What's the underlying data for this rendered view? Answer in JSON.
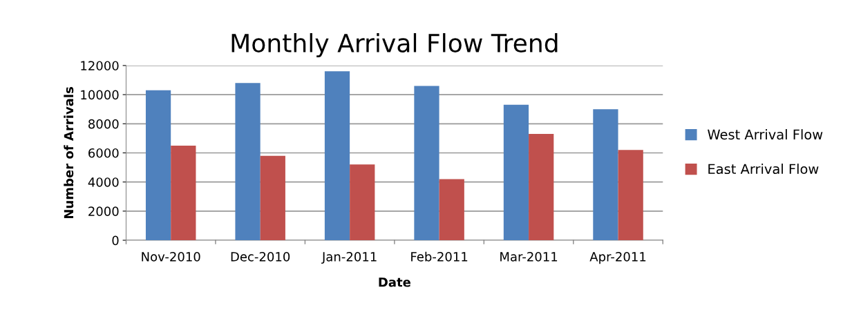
{
  "chart_data": {
    "type": "bar",
    "title": "Monthly Arrival Flow Trend",
    "xlabel": "Date",
    "ylabel": "Number of Arrivals",
    "categories": [
      "Nov-2010",
      "Dec-2010",
      "Jan-2011",
      "Feb-2011",
      "Mar-2011",
      "Apr-2011"
    ],
    "series": [
      {
        "name": "West Arrival Flow",
        "color": "#4f81bd",
        "values": [
          10300,
          10800,
          11600,
          10600,
          9300,
          9000
        ]
      },
      {
        "name": "East Arrival Flow",
        "color": "#c0504d",
        "values": [
          6500,
          5800,
          5200,
          4200,
          7300,
          6200
        ]
      }
    ],
    "ylim": [
      0,
      12000
    ],
    "yticks": [
      0,
      2000,
      4000,
      6000,
      8000,
      10000,
      12000
    ],
    "grid": "y",
    "legend": "right"
  }
}
